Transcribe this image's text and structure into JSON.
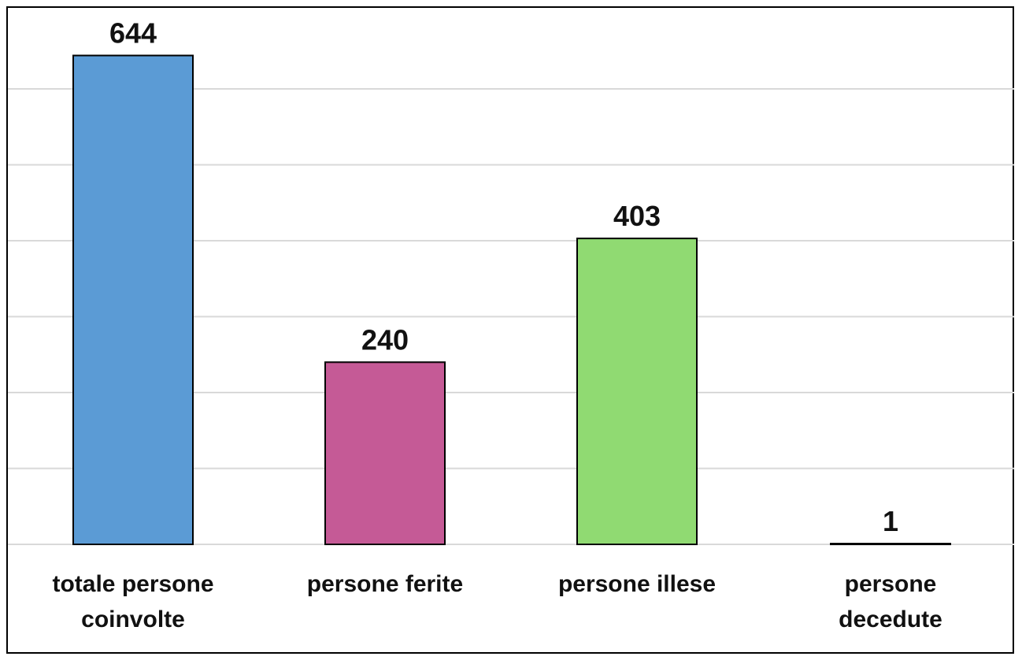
{
  "chart_data": {
    "type": "bar",
    "categories": [
      [
        "totale persone",
        "coinvolte"
      ],
      [
        "persone ferite"
      ],
      [
        "persone illese"
      ],
      [
        "persone",
        "decedute"
      ]
    ],
    "values": [
      644,
      240,
      403,
      1
    ],
    "data_labels": [
      "644",
      "240",
      "403",
      "1"
    ],
    "colors": [
      "#5b9bd5",
      "#c55a96",
      "#90da72",
      "#5b9bd5"
    ],
    "title": "",
    "xlabel": "",
    "ylabel": "",
    "ylim": [
      0,
      700
    ],
    "gridlines": [
      0,
      100,
      200,
      300,
      400,
      500,
      600,
      700
    ],
    "grid": true,
    "legend": "none"
  }
}
